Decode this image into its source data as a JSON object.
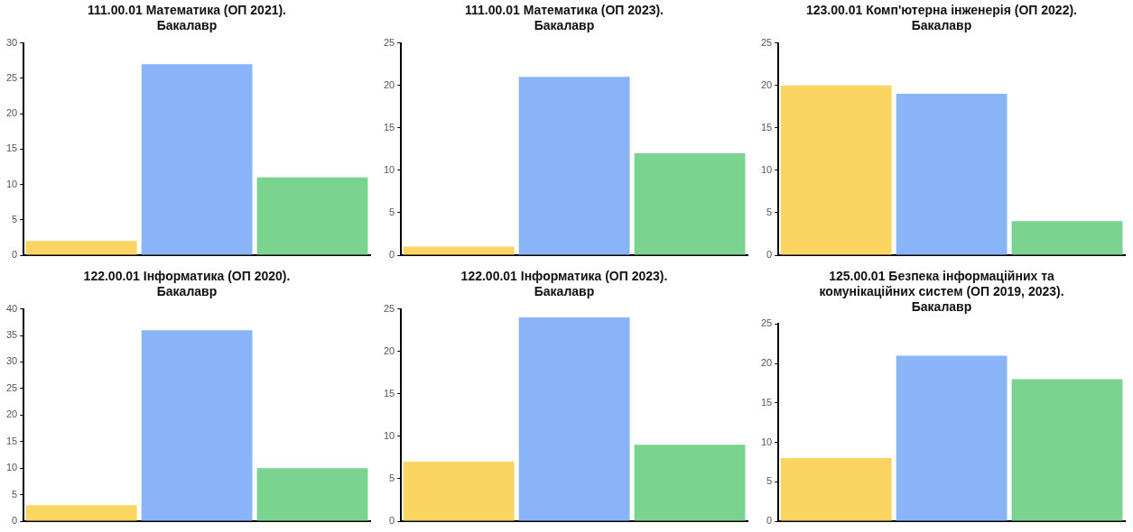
{
  "chart_data": [
    {
      "type": "bar",
      "title": "111.00.01 Математика (ОП 2021).\nБакалавр",
      "categories": [
        null,
        null,
        null
      ],
      "values": [
        2,
        27,
        11
      ],
      "colors": [
        "#fcd462",
        "#8ab4f8",
        "#7ad38f"
      ],
      "ylim": [
        0,
        30
      ],
      "yticks": [
        0,
        5,
        10,
        15,
        20,
        25,
        30
      ]
    },
    {
      "type": "bar",
      "title": "111.00.01 Математика (ОП 2023).\nБакалавр",
      "categories": [
        null,
        null,
        null
      ],
      "values": [
        1,
        21,
        12
      ],
      "colors": [
        "#fcd462",
        "#8ab4f8",
        "#7ad38f"
      ],
      "ylim": [
        0,
        25
      ],
      "yticks": [
        0,
        5,
        10,
        15,
        20,
        25
      ]
    },
    {
      "type": "bar",
      "title": "123.00.01 Комп'ютерна інженерія (ОП 2022).\nБакалавр",
      "categories": [
        null,
        null,
        null
      ],
      "values": [
        20,
        19,
        4
      ],
      "colors": [
        "#fcd462",
        "#8ab4f8",
        "#7ad38f"
      ],
      "ylim": [
        0,
        25
      ],
      "yticks": [
        0,
        5,
        10,
        15,
        20,
        25
      ]
    },
    {
      "type": "bar",
      "title": "122.00.01 Інформатика (ОП 2020).\nБакалавр",
      "categories": [
        null,
        null,
        null
      ],
      "values": [
        3,
        36,
        10
      ],
      "colors": [
        "#fcd462",
        "#8ab4f8",
        "#7ad38f"
      ],
      "ylim": [
        0,
        40
      ],
      "yticks": [
        0,
        5,
        10,
        15,
        20,
        25,
        30,
        35,
        40
      ]
    },
    {
      "type": "bar",
      "title": "122.00.01 Інформатика (ОП 2023).\nБакалавр",
      "categories": [
        null,
        null,
        null
      ],
      "values": [
        7,
        24,
        9
      ],
      "colors": [
        "#fcd462",
        "#8ab4f8",
        "#7ad38f"
      ],
      "ylim": [
        0,
        25
      ],
      "yticks": [
        0,
        5,
        10,
        15,
        20,
        25
      ]
    },
    {
      "type": "bar",
      "title": "125.00.01 Безпека інформаційних та\nкомунікаційних систем (ОП 2019, 2023).\nБакалавр",
      "categories": [
        null,
        null,
        null
      ],
      "values": [
        8,
        21,
        18
      ],
      "colors": [
        "#fcd462",
        "#8ab4f8",
        "#7ad38f"
      ],
      "ylim": [
        0,
        25
      ],
      "yticks": [
        0,
        5,
        10,
        15,
        20,
        25
      ]
    }
  ]
}
